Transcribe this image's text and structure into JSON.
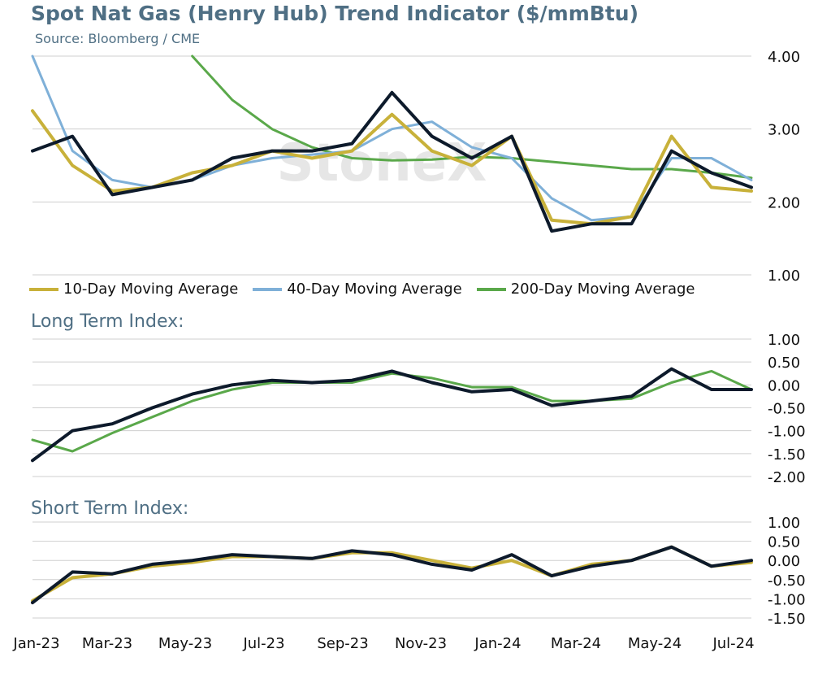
{
  "title": "Spot Nat Gas (Henry Hub) Trend Indicator ($/mmBtu)",
  "source": "Source: Bloomberg / CME",
  "watermark": "StoneX",
  "colors": {
    "price": "#0d1a2b",
    "ma10": "#c8b13a",
    "ma40": "#7fb0d8",
    "ma200": "#5aa84a",
    "title": "#4f6f84",
    "grid": "#cfcfcf"
  },
  "x_labels": [
    "Jan-23",
    "Mar-23",
    "May-23",
    "Jul-23",
    "Sep-23",
    "Nov-23",
    "Jan-24",
    "Mar-24",
    "May-24",
    "Jul-24"
  ],
  "legend": [
    {
      "label": "10-Day Moving Average",
      "color": "#c8b13a"
    },
    {
      "label": "40-Day Moving Average",
      "color": "#7fb0d8"
    },
    {
      "label": "200-Day Moving Average",
      "color": "#5aa84a"
    }
  ],
  "panels": {
    "long_title": "Long Term Index:",
    "short_title": "Short Term Index:"
  },
  "chart_data": [
    {
      "type": "line",
      "title": "Spot Nat Gas (Henry Hub) Trend Indicator ($/mmBtu)",
      "ylim": [
        1.0,
        4.0
      ],
      "yticks": [
        "1.00",
        "2.00",
        "3.00",
        "4.00"
      ],
      "x": [
        "Jan-23",
        "Feb-23",
        "Mar-23",
        "Apr-23",
        "May-23",
        "Jun-23",
        "Jul-23",
        "Aug-23",
        "Sep-23",
        "Oct-23",
        "Nov-23",
        "Dec-23",
        "Jan-24",
        "Feb-24",
        "Mar-24",
        "Apr-24",
        "May-24",
        "Jun-24",
        "Jul-24"
      ],
      "series": [
        {
          "key": "price",
          "values": [
            2.7,
            2.9,
            2.1,
            2.2,
            2.3,
            2.6,
            2.7,
            2.7,
            2.8,
            3.5,
            2.9,
            2.6,
            2.9,
            1.6,
            1.7,
            1.7,
            2.7,
            2.4,
            2.2
          ]
        },
        {
          "key": "ma10",
          "name": "10-Day Moving Average",
          "values": [
            3.25,
            2.5,
            2.15,
            2.2,
            2.4,
            2.5,
            2.7,
            2.6,
            2.7,
            3.2,
            2.7,
            2.5,
            2.9,
            1.75,
            1.7,
            1.8,
            2.9,
            2.2,
            2.15
          ]
        },
        {
          "key": "ma40",
          "name": "40-Day Moving Average",
          "values": [
            4.0,
            2.7,
            2.3,
            2.2,
            2.3,
            2.5,
            2.6,
            2.65,
            2.7,
            3.0,
            3.1,
            2.75,
            2.6,
            2.05,
            1.75,
            1.8,
            2.6,
            2.6,
            2.3
          ]
        },
        {
          "key": "ma200",
          "name": "200-Day Moving Average",
          "values": [
            null,
            null,
            null,
            null,
            4.0,
            3.4,
            3.0,
            2.75,
            2.6,
            2.57,
            2.58,
            2.62,
            2.6,
            2.55,
            2.5,
            2.45,
            2.45,
            2.4,
            2.33
          ]
        }
      ]
    },
    {
      "type": "line",
      "title": "Long Term Index:",
      "ylim": [
        -2.0,
        1.0
      ],
      "yticks": [
        "1.00",
        "0.50",
        "0.00",
        "-0.50",
        "-1.00",
        "-1.50",
        "-2.00"
      ],
      "x": [
        "Jan-23",
        "Feb-23",
        "Mar-23",
        "Apr-23",
        "May-23",
        "Jun-23",
        "Jul-23",
        "Aug-23",
        "Sep-23",
        "Oct-23",
        "Nov-23",
        "Dec-23",
        "Jan-24",
        "Feb-24",
        "Mar-24",
        "Apr-24",
        "May-24",
        "Jun-24",
        "Jul-24"
      ],
      "series": [
        {
          "key": "price",
          "values": [
            -1.65,
            -1.0,
            -0.85,
            -0.5,
            -0.2,
            0.0,
            0.1,
            0.05,
            0.1,
            0.3,
            0.05,
            -0.15,
            -0.1,
            -0.45,
            -0.35,
            -0.25,
            0.35,
            -0.1,
            -0.1
          ]
        },
        {
          "key": "ma200",
          "values": [
            -1.2,
            -1.45,
            -1.05,
            -0.7,
            -0.35,
            -0.1,
            0.05,
            0.05,
            0.05,
            0.25,
            0.15,
            -0.05,
            -0.05,
            -0.35,
            -0.35,
            -0.3,
            0.05,
            0.3,
            -0.1
          ]
        }
      ]
    },
    {
      "type": "line",
      "title": "Short Term Index:",
      "ylim": [
        -1.5,
        1.0
      ],
      "yticks": [
        "1.00",
        "0.50",
        "0.00",
        "-0.50",
        "-1.00",
        "-1.50"
      ],
      "x": [
        "Jan-23",
        "Feb-23",
        "Mar-23",
        "Apr-23",
        "May-23",
        "Jun-23",
        "Jul-23",
        "Aug-23",
        "Sep-23",
        "Oct-23",
        "Nov-23",
        "Dec-23",
        "Jan-24",
        "Feb-24",
        "Mar-24",
        "Apr-24",
        "May-24",
        "Jun-24",
        "Jul-24"
      ],
      "series": [
        {
          "key": "price",
          "values": [
            -1.1,
            -0.3,
            -0.35,
            -0.1,
            0.0,
            0.15,
            0.1,
            0.05,
            0.25,
            0.15,
            -0.1,
            -0.25,
            0.15,
            -0.4,
            -0.15,
            0.0,
            0.35,
            -0.15,
            0.0
          ]
        },
        {
          "key": "ma10",
          "values": [
            -1.05,
            -0.45,
            -0.35,
            -0.15,
            -0.05,
            0.1,
            0.1,
            0.05,
            0.2,
            0.2,
            0.0,
            -0.2,
            0.0,
            -0.4,
            -0.1,
            0.0,
            0.35,
            -0.15,
            -0.05
          ]
        }
      ]
    }
  ]
}
